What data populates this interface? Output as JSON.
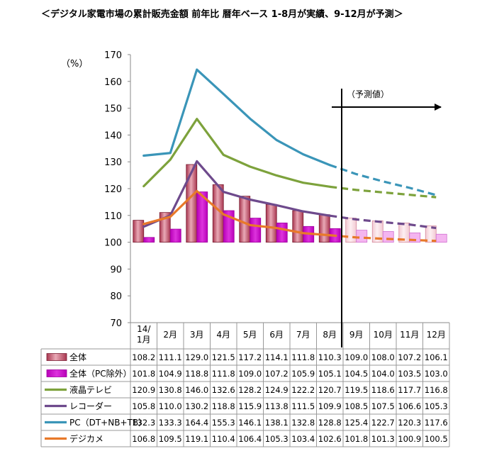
{
  "chart_data": {
    "type": "bar",
    "title": "＜デジタル家電市場の累計販売金額 前年比 暦年ベース 1-8月が実績、9-12月が予測＞",
    "ylabel": "（%）",
    "ylim": [
      70,
      170
    ],
    "yticks": [
      70,
      80,
      90,
      100,
      110,
      120,
      130,
      140,
      150,
      160,
      170
    ],
    "grid": false,
    "bar_baseline": 100,
    "forecast_label": "（予測値）",
    "categories": [
      "14/\n1月",
      "2月",
      "3月",
      "4月",
      "5月",
      "6月",
      "7月",
      "8月",
      "9月",
      "10月",
      "11月",
      "12月"
    ],
    "actual_months": 8,
    "series": [
      {
        "name": "全体",
        "kind": "bar",
        "color": "#c0546c",
        "values": [
          108.2,
          111.1,
          129.0,
          121.5,
          117.2,
          114.1,
          111.8,
          110.3,
          109.0,
          108.0,
          107.2,
          106.1
        ]
      },
      {
        "name": "全体（PC除外）",
        "kind": "bar",
        "color": "#cc00cc",
        "values": [
          101.8,
          104.9,
          118.8,
          111.8,
          109.0,
          107.2,
          105.9,
          105.1,
          104.5,
          104.0,
          103.5,
          103.0
        ]
      },
      {
        "name": "液晶テレビ",
        "kind": "line",
        "color": "#7da23c",
        "values": [
          120.9,
          130.8,
          146.0,
          132.6,
          128.2,
          124.9,
          122.2,
          120.7,
          119.5,
          118.6,
          117.7,
          116.8
        ]
      },
      {
        "name": "レコーダー",
        "kind": "line",
        "color": "#6e4a8c",
        "values": [
          105.8,
          110.0,
          130.2,
          118.8,
          115.9,
          113.8,
          111.5,
          109.9,
          108.5,
          107.5,
          106.6,
          105.3
        ]
      },
      {
        "name": "PC（DT+NB+TB）",
        "kind": "line",
        "color": "#3a95b8",
        "values": [
          132.3,
          133.3,
          164.4,
          155.3,
          146.1,
          138.1,
          132.8,
          128.8,
          125.4,
          122.7,
          120.3,
          117.6
        ]
      },
      {
        "name": "デジカメ",
        "kind": "line",
        "color": "#e8792a",
        "values": [
          106.8,
          109.5,
          119.1,
          110.4,
          106.4,
          105.3,
          103.4,
          102.6,
          101.8,
          101.3,
          100.9,
          100.5
        ]
      }
    ]
  }
}
